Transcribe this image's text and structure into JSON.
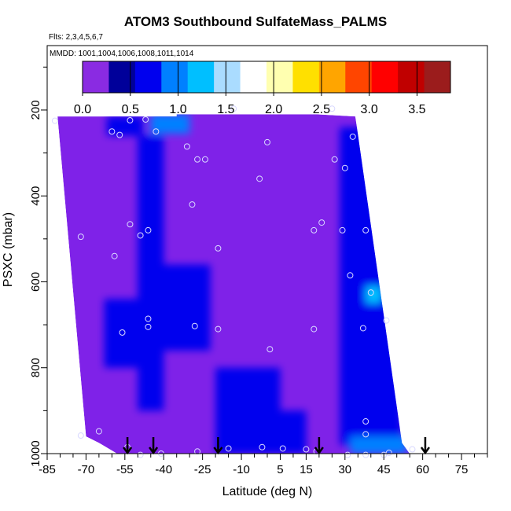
{
  "chart_data": {
    "type": "heatmap",
    "title": "ATOM3 Southbound SulfateMass_PALMS",
    "subtitle": "Flts: 2,3,4,5,6,7",
    "annotation": "MMDD: 1001,1004,1006,1008,1011,1014",
    "xlabel": "Latitude (deg N)",
    "ylabel": "PSXC (mbar)",
    "xlim": [
      -85,
      85
    ],
    "ylim": [
      1000,
      50
    ],
    "x_ticks": [
      -85,
      -70,
      -55,
      -40,
      -25,
      -10,
      5,
      15,
      30,
      45,
      60,
      75
    ],
    "y_ticks": [
      200,
      400,
      600,
      800,
      1000
    ],
    "colorbar": {
      "range": [
        0,
        3.85
      ],
      "ticks": [
        0.0,
        0.5,
        1.0,
        1.5,
        2.0,
        2.5,
        3.0,
        3.5
      ],
      "tick_labels": [
        "0.0",
        "0.5",
        "1.0",
        "1.5",
        "2.0",
        "2.5",
        "3.0",
        "3.5"
      ],
      "colors": [
        "#8a2be2",
        "#00009a",
        "#0000ee",
        "#0080ff",
        "#00bfff",
        "#aadcff",
        "#ffffff",
        "#ffffb0",
        "#ffe000",
        "#ffa500",
        "#ff4500",
        "#ff0000",
        "#c00000",
        "#9b1c1c"
      ]
    },
    "domain_outline": [
      [
        -81,
        215
      ],
      [
        -35,
        215
      ],
      [
        -35,
        210
      ],
      [
        19,
        210
      ],
      [
        34,
        215
      ],
      [
        52,
        975
      ],
      [
        55,
        1000
      ],
      [
        -58,
        1000
      ],
      [
        -65,
        975
      ],
      [
        -70,
        960
      ],
      [
        -81,
        215
      ]
    ],
    "enhanced_regions": [
      {
        "x": [
          -45,
          -30
        ],
        "p": [
          210,
          255
        ],
        "value": 0.9
      },
      {
        "x": [
          -62,
          -48
        ],
        "p": [
          215,
          260
        ],
        "value": 0.6
      },
      {
        "x": [
          -50,
          -40
        ],
        "p": [
          260,
          900
        ],
        "value": 0.45
      },
      {
        "x": [
          -63,
          -44
        ],
        "p": [
          640,
          800
        ],
        "value": 0.55
      },
      {
        "x": [
          -42,
          -22
        ],
        "p": [
          560,
          760
        ],
        "value": 0.45
      },
      {
        "x": [
          5,
          15
        ],
        "p": [
          900,
          1000
        ],
        "value": 0.6
      },
      {
        "x": [
          28,
          46
        ],
        "p": [
          240,
          980
        ],
        "value": 0.5
      },
      {
        "x": [
          40,
          52
        ],
        "p": [
          620,
          980
        ],
        "value": 0.65
      },
      {
        "x": [
          38,
          44
        ],
        "p": [
          610,
          650
        ],
        "value": 1.2
      },
      {
        "x": [
          32,
          54
        ],
        "p": [
          960,
          1000
        ],
        "value": 0.85
      },
      {
        "x": [
          -20,
          5
        ],
        "p": [
          800,
          1000
        ],
        "value": 0.55
      }
    ],
    "flight_markers_x": [
      -54,
      -44,
      -19,
      20,
      61
    ],
    "observations": [
      {
        "lat": -82,
        "p": 225
      },
      {
        "lat": -60,
        "p": 250
      },
      {
        "lat": -57,
        "p": 258
      },
      {
        "lat": -53,
        "p": 224
      },
      {
        "lat": -47,
        "p": 222
      },
      {
        "lat": -43,
        "p": 250
      },
      {
        "lat": -31,
        "p": 285
      },
      {
        "lat": -27,
        "p": 315
      },
      {
        "lat": -24,
        "p": 315
      },
      {
        "lat": -13,
        "p": 197
      },
      {
        "lat": 0,
        "p": 275
      },
      {
        "lat": -3,
        "p": 360
      },
      {
        "lat": 25,
        "p": 197
      },
      {
        "lat": 33,
        "p": 262
      },
      {
        "lat": 26,
        "p": 315
      },
      {
        "lat": 30,
        "p": 335
      },
      {
        "lat": -29,
        "p": 420
      },
      {
        "lat": -53,
        "p": 466
      },
      {
        "lat": -49,
        "p": 492
      },
      {
        "lat": -46,
        "p": 480
      },
      {
        "lat": -72,
        "p": 495
      },
      {
        "lat": -59,
        "p": 540
      },
      {
        "lat": -19,
        "p": 522
      },
      {
        "lat": 18,
        "p": 480
      },
      {
        "lat": 21,
        "p": 462
      },
      {
        "lat": 29,
        "p": 480
      },
      {
        "lat": 38,
        "p": 480
      },
      {
        "lat": 32,
        "p": 585
      },
      {
        "lat": 40,
        "p": 625
      },
      {
        "lat": -46,
        "p": 686
      },
      {
        "lat": -46,
        "p": 705
      },
      {
        "lat": -56,
        "p": 718
      },
      {
        "lat": -28,
        "p": 703
      },
      {
        "lat": -19,
        "p": 710
      },
      {
        "lat": 18,
        "p": 710
      },
      {
        "lat": 37,
        "p": 708
      },
      {
        "lat": 46,
        "p": 690
      },
      {
        "lat": 1,
        "p": 757
      },
      {
        "lat": 38,
        "p": 925
      },
      {
        "lat": 38,
        "p": 955
      },
      {
        "lat": -65,
        "p": 948
      },
      {
        "lat": -72,
        "p": 958
      },
      {
        "lat": -54,
        "p": 985
      },
      {
        "lat": -49,
        "p": 1003
      },
      {
        "lat": -41,
        "p": 1000
      },
      {
        "lat": -27,
        "p": 995
      },
      {
        "lat": -15,
        "p": 988
      },
      {
        "lat": -2,
        "p": 985
      },
      {
        "lat": 6,
        "p": 988
      },
      {
        "lat": 15,
        "p": 990
      },
      {
        "lat": 19,
        "p": 995
      },
      {
        "lat": 31,
        "p": 1003
      },
      {
        "lat": 38,
        "p": 1003
      },
      {
        "lat": 45,
        "p": 1003
      },
      {
        "lat": 47,
        "p": 998
      },
      {
        "lat": 56,
        "p": 990
      }
    ]
  }
}
